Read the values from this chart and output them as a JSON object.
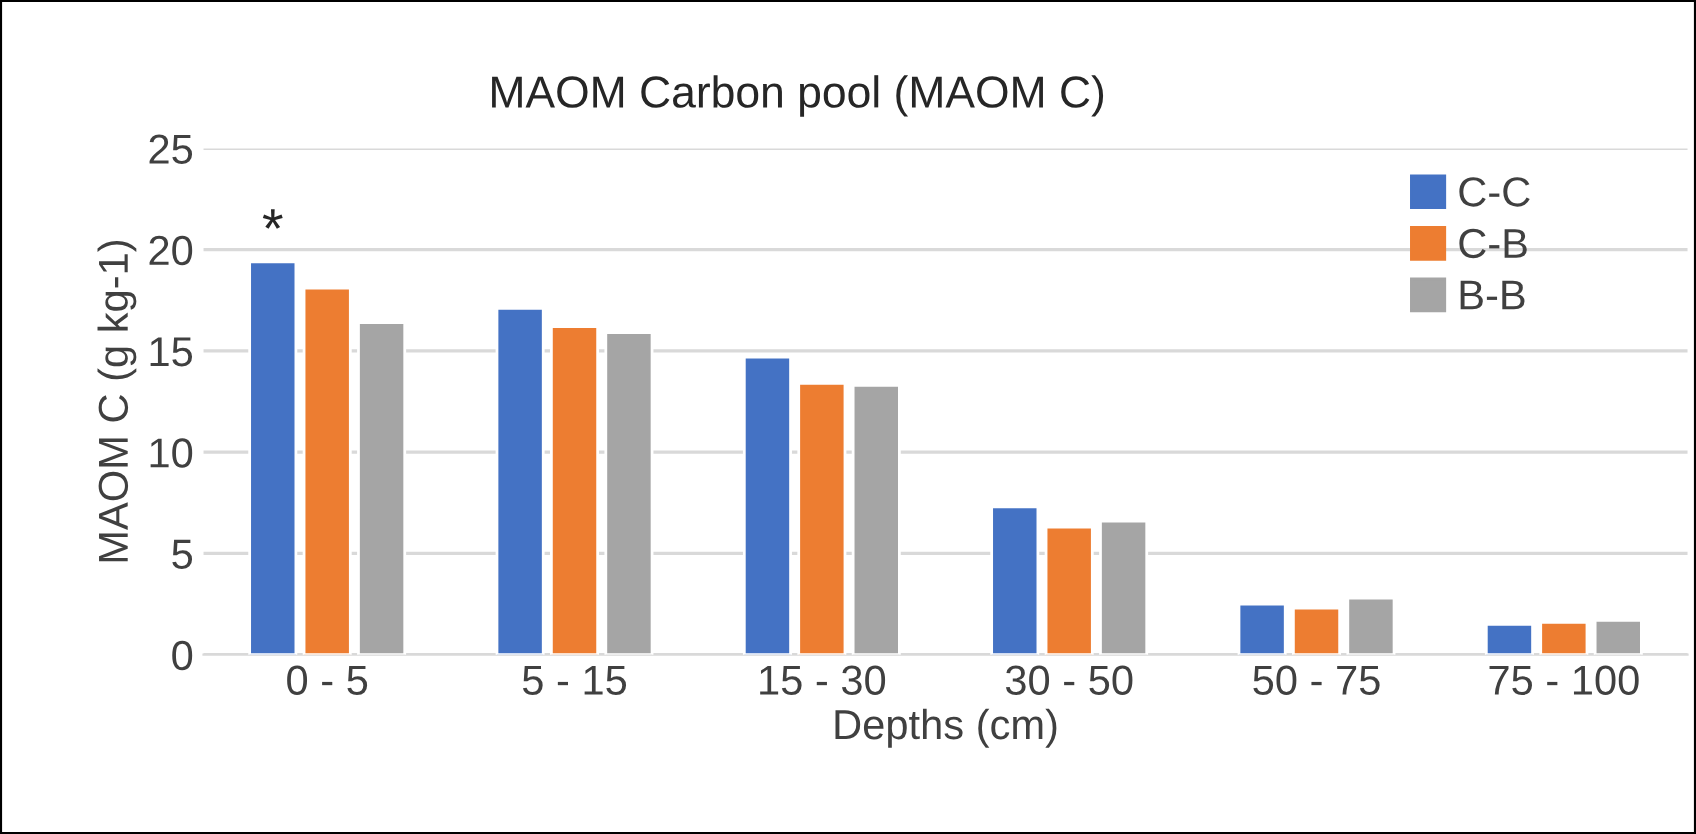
{
  "chart_data": {
    "type": "bar",
    "title": "MAOM Carbon pool (MAOM C)",
    "xlabel": "Depths (cm)",
    "ylabel": "MAOM C (g kg-1)",
    "categories": [
      "0 - 5",
      "5 - 15",
      "15 - 30",
      "30 - 50",
      "50 - 75",
      "75 - 100"
    ],
    "series": [
      {
        "name": "C-C",
        "color": "#4472c4",
        "values": [
          19.4,
          17.1,
          14.7,
          7.3,
          2.5,
          1.5
        ]
      },
      {
        "name": "C-B",
        "color": "#ed7d31",
        "values": [
          18.1,
          16.2,
          13.4,
          6.3,
          2.3,
          1.6
        ]
      },
      {
        "name": "B-B",
        "color": "#a5a5a5",
        "values": [
          16.4,
          15.9,
          13.3,
          6.6,
          2.8,
          1.7
        ]
      }
    ],
    "ylim": [
      0,
      25
    ],
    "yticks": [
      0,
      5,
      10,
      15,
      20,
      25
    ],
    "grid": "y",
    "legend": "top right",
    "annotations": [
      "*"
    ]
  }
}
